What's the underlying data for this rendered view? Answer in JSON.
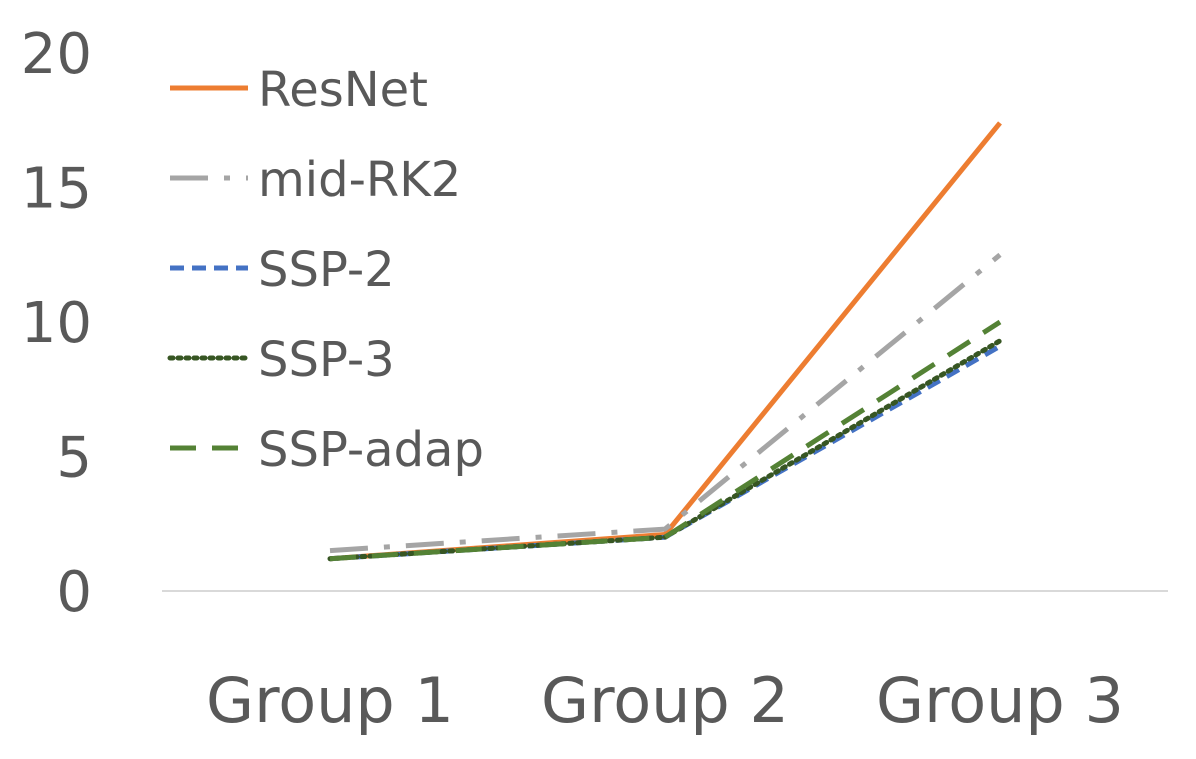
{
  "chart_data": {
    "type": "line",
    "categories": [
      "Group 1",
      "Group 2",
      "Group 3"
    ],
    "series": [
      {
        "name": "ResNet",
        "values": [
          1.2,
          2.1,
          17.4
        ],
        "color": "#ED7D31",
        "dash": "solid"
      },
      {
        "name": "mid-RK2",
        "values": [
          1.5,
          2.3,
          12.5
        ],
        "color": "#A5A5A5",
        "dash": "dashdot"
      },
      {
        "name": "SSP-2",
        "values": [
          1.2,
          2.0,
          9.1
        ],
        "color": "#4472C4",
        "dash": "dashed"
      },
      {
        "name": "SSP-3",
        "values": [
          1.2,
          2.0,
          9.3
        ],
        "color": "#375623",
        "dash": "dotted"
      },
      {
        "name": "SSP-adap",
        "values": [
          1.2,
          2.0,
          10.0
        ],
        "color": "#548235",
        "dash": "longdash"
      }
    ],
    "yticks": [
      "0",
      "5",
      "10",
      "15",
      "20"
    ],
    "ylim": [
      0,
      20
    ],
    "title": "",
    "xlabel": "",
    "ylabel": "",
    "grid": false,
    "legend_position": "top-left"
  }
}
